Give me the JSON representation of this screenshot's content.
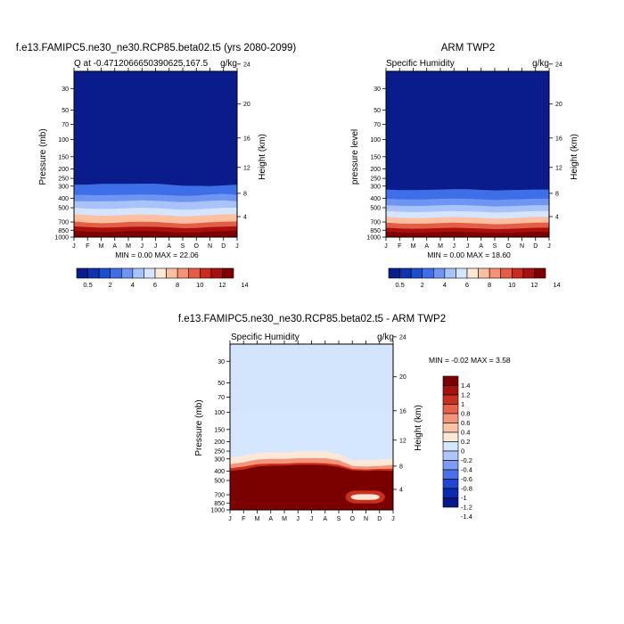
{
  "colors": {
    "seq": [
      "#0a1c8c",
      "#0d33b0",
      "#1a4fd0",
      "#3f6fe8",
      "#6f95f2",
      "#a7c3fa",
      "#d5e5ff",
      "#fde7d5",
      "#fcc0a0",
      "#f59273",
      "#e45d46",
      "#cb2a1e",
      "#a8100e",
      "#7e0000"
    ],
    "div": [
      "#07168a",
      "#0b2ab0",
      "#1f47d4",
      "#4a70ea",
      "#7c9cf5",
      "#aec6fb",
      "#d5e6ff",
      "#fde8d7",
      "#fcc4a5",
      "#f4947a",
      "#e4624b",
      "#c92f1d",
      "#a5120e",
      "#7b0000"
    ]
  },
  "panels": [
    {
      "id": "model",
      "title": "f.e13.FAMIPC5.ne30_ne30.RCP85.beta02.t5 (yrs 2080-2099)",
      "left_label": "Q at -0.4712066650390625,167.5",
      "right_label": "g/kg",
      "ylabel": "Pressure (mb)",
      "y2label": "Height (km)",
      "minmax": "MIN =   0.00 MAX =  22.06",
      "cbar_labels": [
        "0.5",
        "2",
        "4",
        "6",
        "8",
        "10",
        "12",
        "14"
      ]
    },
    {
      "id": "obs",
      "title": "ARM TWP2",
      "left_label": "Specific Humidity",
      "right_label": "g/kg",
      "ylabel": "pressure level",
      "y2label": "Height (km)",
      "minmax": "MIN =   0.00 MAX =  18.60",
      "cbar_labels": [
        "0.5",
        "2",
        "4",
        "6",
        "8",
        "10",
        "12",
        "14"
      ]
    },
    {
      "id": "diff",
      "title": "f.e13.FAMIPC5.ne30_ne30.RCP85.beta02.t5 - ARM TWP2",
      "left_label": "Specific Humidity",
      "right_label": "g/kg",
      "ylabel": "Pressure (mb)",
      "y2label": "Height (km)",
      "minmax": "MIN =  -0.02 MAX =    3.58",
      "cbar_labels": [
        "1.4",
        "1.2",
        "1",
        "0.8",
        "0.6",
        "0.4",
        "0.2",
        "0",
        "-0.2",
        "-0.4",
        "-0.6",
        "-0.8",
        "-1",
        "-1.2",
        "-1.4"
      ]
    }
  ],
  "chart_data": [
    {
      "type": "heatmap",
      "title": "f.e13.FAMIPC5.ne30_ne30.RCP85.beta02.t5 (yrs 2080-2099)",
      "variable": "Q at -0.4712066650390625,167.5",
      "units": "g/kg",
      "xlabel": "",
      "x_tick_labels": [
        "J",
        "F",
        "M",
        "A",
        "M",
        "J",
        "J",
        "A",
        "S",
        "O",
        "N",
        "D",
        "J"
      ],
      "ylabel": "Pressure (mb)",
      "y_tick_labels": [
        30,
        50,
        70,
        100,
        150,
        200,
        250,
        300,
        400,
        500,
        700,
        850,
        1000
      ],
      "y_log": true,
      "y_reversed": true,
      "ylim": [
        1000,
        20
      ],
      "y2label": "Height (km)",
      "y2_tick_labels": [
        24,
        20,
        16,
        12,
        8,
        4
      ],
      "min": 0.0,
      "max": 22.06,
      "contour_levels": [
        0.5,
        1,
        2,
        3,
        4,
        5,
        6,
        7,
        8,
        9,
        10,
        11,
        12,
        13,
        14
      ],
      "colorbar_labels": [
        "0.5",
        "2",
        "4",
        "6",
        "8",
        "10",
        "12",
        "14"
      ],
      "level_pressure_mb": {
        "0.5": [
          290,
          290,
          285,
          285,
          285,
          283,
          283,
          290,
          298,
          298,
          300,
          295,
          290
        ],
        "2": [
          368,
          370,
          372,
          370,
          368,
          365,
          368,
          372,
          378,
          375,
          365,
          360,
          368
        ],
        "4": [
          428,
          430,
          430,
          428,
          425,
          420,
          425,
          432,
          438,
          435,
          425,
          420,
          428
        ],
        "6": [
          500,
          510,
          515,
          512,
          505,
          500,
          505,
          515,
          525,
          520,
          510,
          500,
          500
        ],
        "8": [
          580,
          595,
          605,
          600,
          590,
          585,
          590,
          600,
          615,
          605,
          595,
          585,
          580
        ],
        "10": [
          690,
          710,
          720,
          715,
          700,
          695,
          700,
          715,
          730,
          720,
          705,
          695,
          690
        ],
        "12": [
          775,
          790,
          800,
          795,
          785,
          780,
          785,
          795,
          810,
          805,
          790,
          780,
          775
        ],
        "14": [
          860,
          880,
          890,
          885,
          870,
          865,
          870,
          885,
          900,
          895,
          880,
          870,
          860
        ]
      }
    },
    {
      "type": "heatmap",
      "title": "ARM TWP2",
      "variable": "Specific Humidity",
      "units": "g/kg",
      "xlabel": "",
      "x_tick_labels": [
        "J",
        "F",
        "M",
        "A",
        "M",
        "J",
        "J",
        "A",
        "S",
        "O",
        "N",
        "D",
        "J"
      ],
      "ylabel": "pressure level",
      "y_tick_labels": [
        30,
        50,
        70,
        100,
        150,
        200,
        250,
        300,
        400,
        500,
        700,
        850,
        1000
      ],
      "y_log": true,
      "y_reversed": true,
      "ylim": [
        1000,
        20
      ],
      "y2label": "Height (km)",
      "y2_tick_labels": [
        24,
        20,
        16,
        12,
        8,
        4
      ],
      "min": 0.0,
      "max": 18.6,
      "contour_levels": [
        0.5,
        1,
        2,
        3,
        4,
        5,
        6,
        7,
        8,
        9,
        10,
        11,
        12,
        13,
        14
      ],
      "colorbar_labels": [
        "0.5",
        "2",
        "4",
        "6",
        "8",
        "10",
        "12",
        "14"
      ],
      "level_pressure_mb": {
        "0.5": [
          325,
          330,
          330,
          328,
          325,
          323,
          323,
          328,
          332,
          330,
          328,
          325,
          325
        ],
        "2": [
          405,
          410,
          412,
          410,
          405,
          402,
          405,
          410,
          415,
          412,
          408,
          404,
          405
        ],
        "4": [
          470,
          478,
          480,
          478,
          472,
          468,
          472,
          478,
          485,
          482,
          476,
          470,
          470
        ],
        "6": [
          540,
          550,
          555,
          552,
          545,
          540,
          545,
          552,
          560,
          556,
          548,
          540,
          540
        ],
        "8": [
          620,
          632,
          638,
          635,
          628,
          622,
          628,
          635,
          645,
          640,
          630,
          620,
          620
        ],
        "10": [
          710,
          725,
          730,
          728,
          718,
          712,
          718,
          728,
          738,
          732,
          722,
          712,
          710
        ],
        "12": [
          800,
          815,
          820,
          818,
          808,
          802,
          808,
          818,
          828,
          822,
          812,
          802,
          800
        ],
        "14": [
          880,
          895,
          900,
          898,
          888,
          882,
          888,
          898,
          908,
          902,
          892,
          882,
          880
        ]
      }
    },
    {
      "type": "heatmap",
      "title": "f.e13.FAMIPC5.ne30_ne30.RCP85.beta02.t5 - ARM TWP2",
      "variable": "Specific Humidity",
      "units": "g/kg",
      "xlabel": "",
      "x_tick_labels": [
        "J",
        "F",
        "M",
        "A",
        "M",
        "J",
        "J",
        "A",
        "S",
        "O",
        "N",
        "D",
        "J"
      ],
      "ylabel": "Pressure (mb)",
      "y_tick_labels": [
        30,
        50,
        70,
        100,
        150,
        200,
        250,
        300,
        400,
        500,
        700,
        850,
        1000
      ],
      "y_log": true,
      "y_reversed": true,
      "ylim": [
        1000,
        20
      ],
      "y2label": "Height (km)",
      "y2_tick_labels": [
        24,
        20,
        16,
        12,
        8,
        4
      ],
      "min": -0.02,
      "max": 3.58,
      "contour_levels": [
        -1.4,
        -1.2,
        -1,
        -0.8,
        -0.6,
        -0.4,
        -0.2,
        0,
        0.2,
        0.4,
        0.6,
        0.8,
        1,
        1.2,
        1.4
      ],
      "colorbar_labels": [
        "1.4",
        "1.2",
        "1",
        "0.8",
        "0.6",
        "0.4",
        "0.2",
        "0",
        "-0.2",
        "-0.4",
        "-0.6",
        "-0.8",
        "-1",
        "-1.2",
        "-1.4"
      ],
      "level_pressure_mb": {
        "0": [
          96,
          97,
          97,
          97,
          97,
          97,
          96,
          96,
          95,
          94,
          93,
          94,
          96
        ],
        "0.2": [
          290,
          278,
          262,
          255,
          258,
          250,
          250,
          250,
          268,
          310,
          310,
          305,
          300
        ],
        "0.4": [
          340,
          325,
          305,
          300,
          300,
          295,
          295,
          295,
          310,
          355,
          360,
          355,
          345
        ],
        "0.6": [
          375,
          360,
          340,
          335,
          335,
          330,
          330,
          332,
          345,
          380,
          385,
          380,
          378
        ],
        "1.4": [
          400,
          385,
          360,
          352,
          350,
          345,
          345,
          348,
          362,
          395,
          400,
          395,
          400
        ]
      },
      "low_anomaly_box": {
        "months": [
          "O",
          "N",
          "D"
        ],
        "pressure_mb": [
          690,
          790
        ],
        "value": 0.2
      }
    }
  ]
}
